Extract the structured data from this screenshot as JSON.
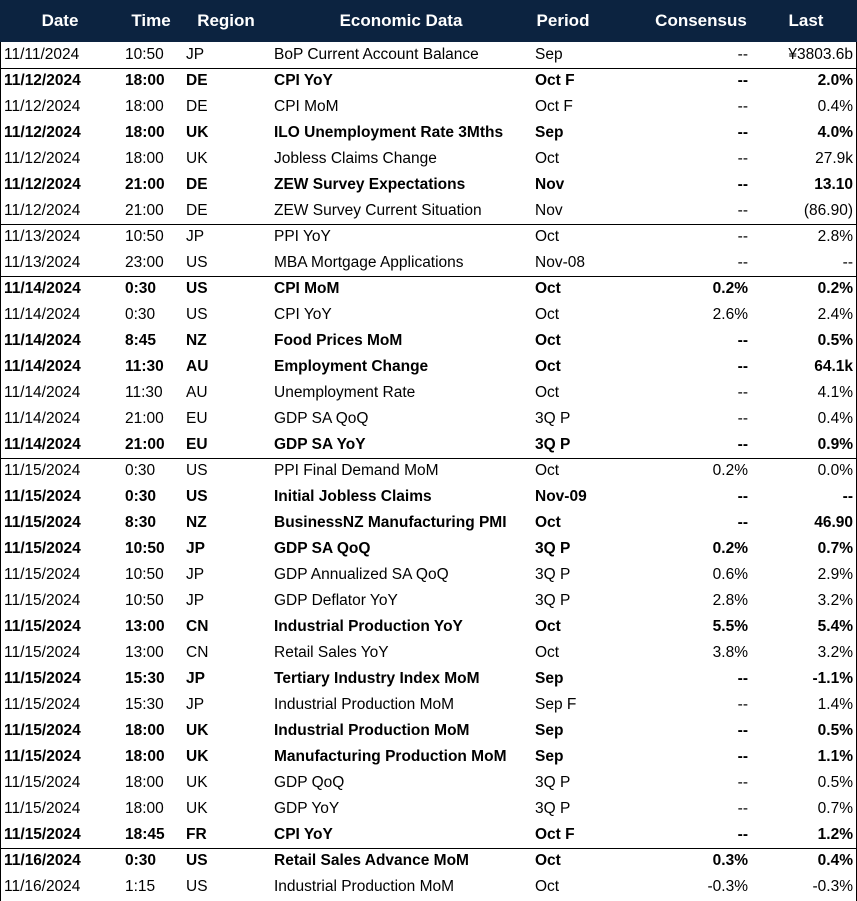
{
  "table": {
    "header": [
      "Date",
      "Time",
      "Region",
      "Economic Data",
      "Period",
      "Consensus",
      "Last"
    ],
    "rows": [
      {
        "cells": [
          "11/11/2024",
          "10:50",
          "JP",
          "BoP Current Account Balance",
          "Sep",
          "--",
          "¥3803.6b"
        ],
        "bold": false
      },
      {
        "cells": [
          "11/12/2024",
          "18:00",
          "DE",
          "CPI YoY",
          "Oct F",
          "--",
          "2.0%"
        ],
        "bold": true
      },
      {
        "cells": [
          "11/12/2024",
          "18:00",
          "DE",
          "CPI MoM",
          "Oct F",
          "--",
          "0.4%"
        ],
        "bold": false
      },
      {
        "cells": [
          "11/12/2024",
          "18:00",
          "UK",
          "ILO Unemployment Rate 3Mths",
          "Sep",
          "--",
          "4.0%"
        ],
        "bold": true
      },
      {
        "cells": [
          "11/12/2024",
          "18:00",
          "UK",
          "Jobless Claims Change",
          "Oct",
          "--",
          "27.9k"
        ],
        "bold": false
      },
      {
        "cells": [
          "11/12/2024",
          "21:00",
          "DE",
          "ZEW Survey Expectations",
          "Nov",
          "--",
          "13.10"
        ],
        "bold": true
      },
      {
        "cells": [
          "11/12/2024",
          "21:00",
          "DE",
          "ZEW Survey Current Situation",
          "Nov",
          "--",
          "(86.90)"
        ],
        "bold": false
      },
      {
        "cells": [
          "11/13/2024",
          "10:50",
          "JP",
          "PPI YoY",
          "Oct",
          "--",
          "2.8%"
        ],
        "bold": false
      },
      {
        "cells": [
          "11/13/2024",
          "23:00",
          "US",
          "MBA Mortgage Applications",
          "Nov-08",
          "--",
          "--"
        ],
        "bold": false
      },
      {
        "cells": [
          "11/14/2024",
          "0:30",
          "US",
          "CPI MoM",
          "Oct",
          "0.2%",
          "0.2%"
        ],
        "bold": true
      },
      {
        "cells": [
          "11/14/2024",
          "0:30",
          "US",
          "CPI YoY",
          "Oct",
          "2.6%",
          "2.4%"
        ],
        "bold": false
      },
      {
        "cells": [
          "11/14/2024",
          "8:45",
          "NZ",
          "Food Prices MoM",
          "Oct",
          "--",
          "0.5%"
        ],
        "bold": true
      },
      {
        "cells": [
          "11/14/2024",
          "11:30",
          "AU",
          "Employment Change",
          "Oct",
          "--",
          "64.1k"
        ],
        "bold": true
      },
      {
        "cells": [
          "11/14/2024",
          "11:30",
          "AU",
          "Unemployment Rate",
          "Oct",
          "--",
          "4.1%"
        ],
        "bold": false
      },
      {
        "cells": [
          "11/14/2024",
          "21:00",
          "EU",
          "GDP SA QoQ",
          "3Q P",
          "--",
          "0.4%"
        ],
        "bold": false
      },
      {
        "cells": [
          "11/14/2024",
          "21:00",
          "EU",
          "GDP SA YoY",
          "3Q P",
          "--",
          "0.9%"
        ],
        "bold": true
      },
      {
        "cells": [
          "11/15/2024",
          "0:30",
          "US",
          "PPI Final Demand MoM",
          "Oct",
          "0.2%",
          "0.0%"
        ],
        "bold": false
      },
      {
        "cells": [
          "11/15/2024",
          "0:30",
          "US",
          "Initial Jobless Claims",
          "Nov-09",
          "--",
          "--"
        ],
        "bold": true
      },
      {
        "cells": [
          "11/15/2024",
          "8:30",
          "NZ",
          "BusinessNZ Manufacturing PMI",
          "Oct",
          "--",
          "46.90"
        ],
        "bold": true
      },
      {
        "cells": [
          "11/15/2024",
          "10:50",
          "JP",
          "GDP SA QoQ",
          "3Q P",
          "0.2%",
          "0.7%"
        ],
        "bold": true
      },
      {
        "cells": [
          "11/15/2024",
          "10:50",
          "JP",
          "GDP Annualized SA QoQ",
          "3Q P",
          "0.6%",
          "2.9%"
        ],
        "bold": false
      },
      {
        "cells": [
          "11/15/2024",
          "10:50",
          "JP",
          "GDP Deflator YoY",
          "3Q P",
          "2.8%",
          "3.2%"
        ],
        "bold": false
      },
      {
        "cells": [
          "11/15/2024",
          "13:00",
          "CN",
          "Industrial Production YoY",
          "Oct",
          "5.5%",
          "5.4%"
        ],
        "bold": true
      },
      {
        "cells": [
          "11/15/2024",
          "13:00",
          "CN",
          "Retail Sales YoY",
          "Oct",
          "3.8%",
          "3.2%"
        ],
        "bold": false
      },
      {
        "cells": [
          "11/15/2024",
          "15:30",
          "JP",
          "Tertiary Industry Index MoM",
          "Sep",
          "--",
          "-1.1%"
        ],
        "bold": true
      },
      {
        "cells": [
          "11/15/2024",
          "15:30",
          "JP",
          "Industrial Production MoM",
          "Sep F",
          "--",
          "1.4%"
        ],
        "bold": false
      },
      {
        "cells": [
          "11/15/2024",
          "18:00",
          "UK",
          "Industrial Production MoM",
          "Sep",
          "--",
          "0.5%"
        ],
        "bold": true
      },
      {
        "cells": [
          "11/15/2024",
          "18:00",
          "UK",
          "Manufacturing Production MoM",
          "Sep",
          "--",
          "1.1%"
        ],
        "bold": true
      },
      {
        "cells": [
          "11/15/2024",
          "18:00",
          "UK",
          "GDP QoQ",
          "3Q P",
          "--",
          "0.5%"
        ],
        "bold": false
      },
      {
        "cells": [
          "11/15/2024",
          "18:00",
          "UK",
          "GDP YoY",
          "3Q P",
          "--",
          "0.7%"
        ],
        "bold": false
      },
      {
        "cells": [
          "11/15/2024",
          "18:45",
          "FR",
          "CPI YoY",
          "Oct F",
          "--",
          "1.2%"
        ],
        "bold": true
      },
      {
        "cells": [
          "11/16/2024",
          "0:30",
          "US",
          "Retail Sales Advance MoM",
          "Oct",
          "0.3%",
          "0.4%"
        ],
        "bold": true
      },
      {
        "cells": [
          "11/16/2024",
          "1:15",
          "US",
          "Industrial Production MoM",
          "Oct",
          "-0.3%",
          "-0.3%"
        ],
        "bold": false
      }
    ]
  }
}
